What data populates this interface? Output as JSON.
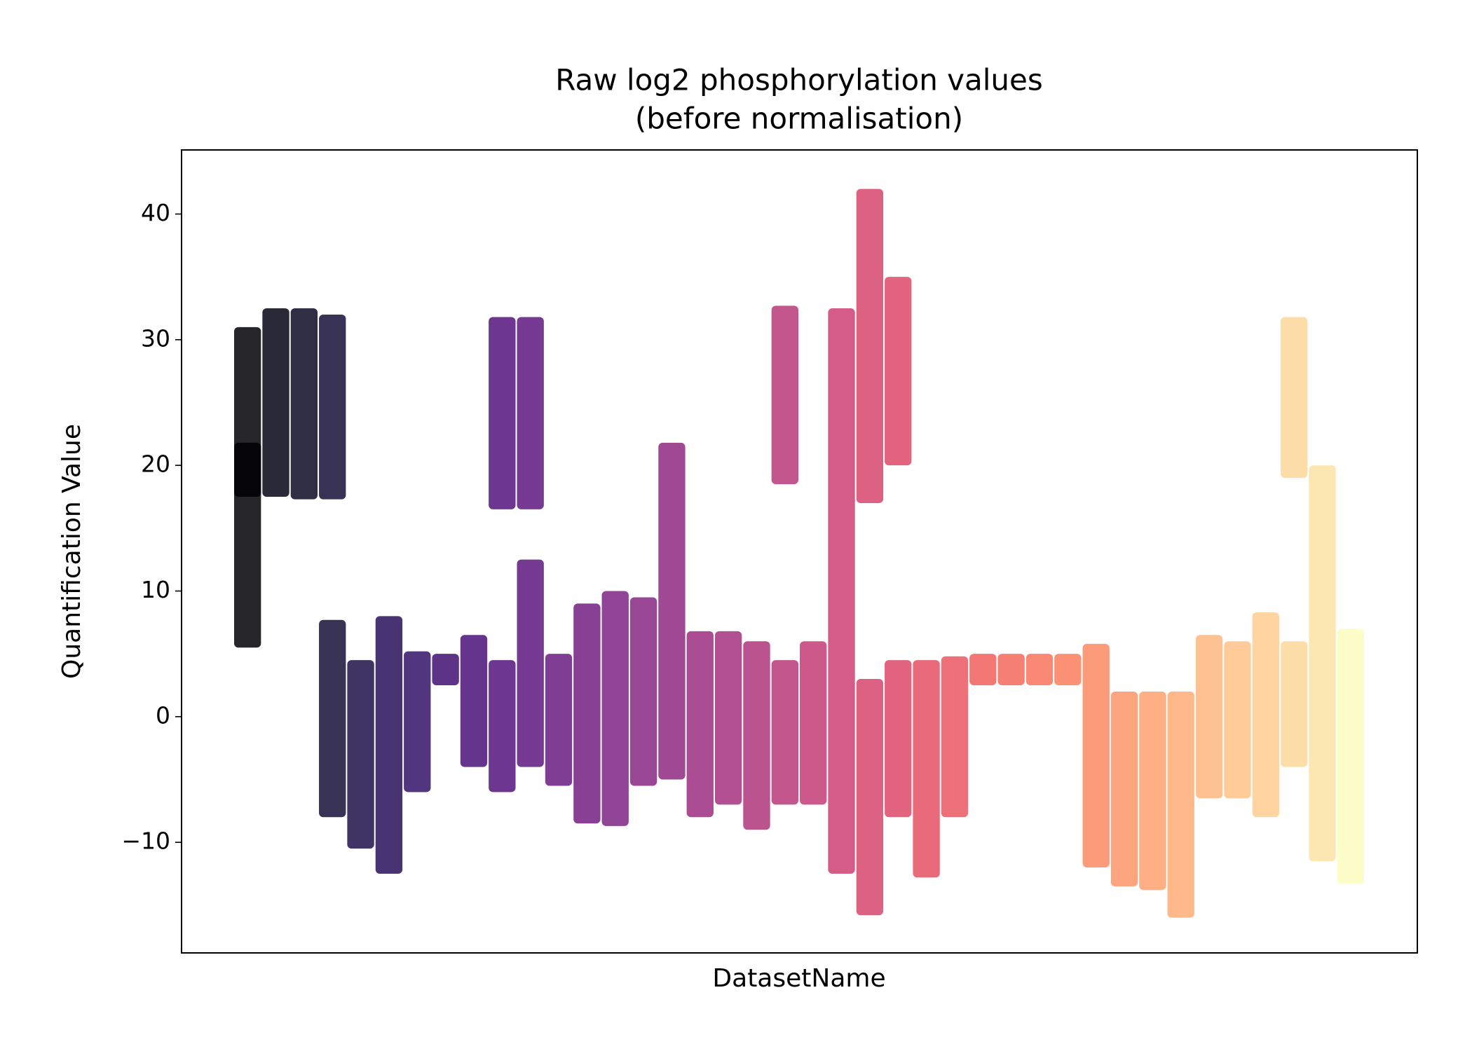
{
  "chart_data": {
    "type": "range",
    "title": [
      "Raw log2 phosphorylation values",
      "(before normalisation)"
    ],
    "x_label": "DatasetName",
    "y_label": "Quantification Value",
    "ylim": [
      -18.8,
      45.1
    ],
    "yticks": [
      {
        "value": -10,
        "label": "−10"
      },
      0,
      10,
      20,
      30,
      40
    ],
    "categories": [
      null,
      null,
      null,
      null,
      null,
      null,
      null,
      null,
      null,
      null,
      null,
      null,
      null,
      null,
      null,
      null,
      null,
      null,
      null,
      null,
      null,
      null,
      null,
      null,
      null,
      null,
      null,
      null,
      null,
      null,
      null,
      null,
      null,
      null,
      null,
      null,
      null,
      null,
      null,
      null
    ],
    "ranges": [
      [
        [
          5.5,
          21.8
        ],
        [
          17.5,
          31
        ]
      ],
      [
        [
          17.5,
          32.5
        ]
      ],
      [
        [
          17.3,
          32.5
        ]
      ],
      [
        [
          -8,
          7.7
        ],
        [
          17.3,
          32
        ]
      ],
      [
        [
          -10.5,
          4.5
        ]
      ],
      [
        [
          -12.5,
          8
        ]
      ],
      [
        [
          -6,
          5.2
        ]
      ],
      [
        [
          2.5,
          5
        ]
      ],
      [
        [
          -4,
          6.5
        ]
      ],
      [
        [
          -6,
          4.5
        ],
        [
          16.5,
          31.8
        ]
      ],
      [
        [
          -4,
          12.5
        ],
        [
          16.5,
          31.8
        ]
      ],
      [
        [
          -5.5,
          5
        ]
      ],
      [
        [
          -8.5,
          9
        ]
      ],
      [
        [
          -8.7,
          10
        ]
      ],
      [
        [
          -5.5,
          9.5
        ]
      ],
      [
        [
          -5,
          21.8
        ]
      ],
      [
        [
          -8,
          6.8
        ]
      ],
      [
        [
          -7,
          6.8
        ]
      ],
      [
        [
          -9,
          6
        ]
      ],
      [
        [
          -7,
          4.5
        ],
        [
          18.5,
          32.7
        ]
      ],
      [
        [
          -7,
          6
        ]
      ],
      [
        [
          -12.5,
          32.5
        ]
      ],
      [
        [
          -15.8,
          3
        ],
        [
          17,
          42
        ]
      ],
      [
        [
          -8,
          4.5
        ],
        [
          20,
          35
        ]
      ],
      [
        [
          -12.8,
          4.5
        ]
      ],
      [
        [
          -8,
          4.8
        ]
      ],
      [
        [
          2.5,
          5
        ]
      ],
      [
        [
          2.5,
          5
        ]
      ],
      [
        [
          2.5,
          5
        ]
      ],
      [
        [
          2.5,
          5
        ]
      ],
      [
        [
          -12,
          5.8
        ]
      ],
      [
        [
          -13.5,
          2
        ]
      ],
      [
        [
          -13.8,
          2
        ]
      ],
      [
        [
          -16,
          2
        ]
      ],
      [
        [
          -6.5,
          6.5
        ]
      ],
      [
        [
          -6.5,
          6
        ]
      ],
      [
        [
          -8,
          8.3
        ]
      ],
      [
        [
          -4,
          6
        ],
        [
          19,
          31.8
        ]
      ],
      [
        [
          -11.5,
          20
        ]
      ],
      [
        [
          -13.3,
          7
        ]
      ]
    ],
    "colors": [
      "#000004",
      "#040414",
      "#0b0924",
      "#150e37",
      "#1e114a",
      "#29115a",
      "#341268",
      "#3f0f72",
      "#4a1079",
      "#54137d",
      "#5e177f",
      "#681c81",
      "#721f81",
      "#7c2382",
      "#862781",
      "#902a81",
      "#9b2e7f",
      "#a5317e",
      "#af357b",
      "#b93878",
      "#c43c75",
      "#cd4071",
      "#d6456c",
      "#de4968",
      "#e55064",
      "#eb5760",
      "#f1605d",
      "#f5695c",
      "#f8745c",
      "#fa7f5e",
      "#fc8a62",
      "#fd9567",
      "#fea16e",
      "#feac76",
      "#feb77f",
      "#fec287",
      "#fecd90",
      "#fdd89a",
      "#fce3a4",
      "#fcfdbf"
    ],
    "grid": false
  }
}
